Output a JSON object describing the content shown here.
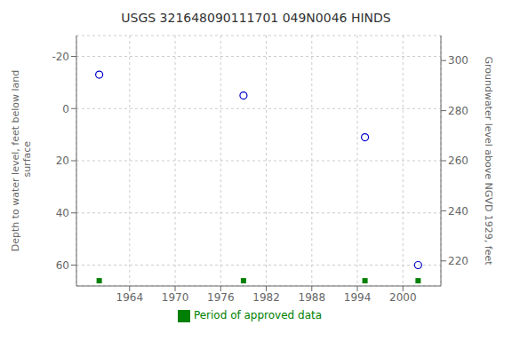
{
  "chart_data": {
    "type": "scatter",
    "title": "USGS 321648090111701 049N0046  HINDS",
    "x": [
      1960,
      1979,
      1995,
      2002
    ],
    "series": [
      {
        "values": [
          -13,
          -5,
          11,
          60
        ],
        "color": "#0000cc",
        "marker": "hollow_circle"
      },
      {
        "name": "Period of approved data",
        "values": [
          66,
          66,
          66,
          66
        ],
        "color": "#008000",
        "marker": "square"
      }
    ],
    "xlim": [
      1957,
      2005
    ],
    "xticks": [
      1964,
      1970,
      1976,
      1982,
      1988,
      1994,
      2000
    ],
    "ylim": [
      68,
      -28
    ],
    "yticks": [
      -20,
      0,
      20,
      40,
      60
    ],
    "ylabel": "Depth to water level, feet below land\n surface",
    "y2label": "Groundwater level above NGVD 1929, feet",
    "y2lim": [
      210,
      310
    ],
    "y2ticks": [
      300,
      280,
      260,
      240,
      220
    ],
    "grid": true
  }
}
